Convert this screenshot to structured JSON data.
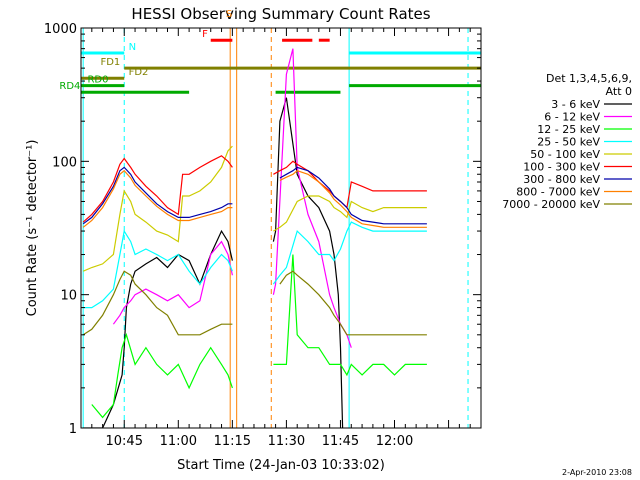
{
  "chart_data": {
    "type": "line",
    "title": "HESSI Observing Summary Count Rates",
    "xlabel": "Start Time (24-Jan-03 10:33:02)",
    "ylabel": "Count Rate (s⁻¹ detector⁻¹)",
    "yscale": "log",
    "ylim": [
      1,
      1000
    ],
    "xlim_minutes": [
      10.55,
      12.4
    ],
    "xtick_labels": [
      "10:45",
      "11:00",
      "11:15",
      "11:30",
      "11:45",
      "12:00"
    ],
    "xtick_values": [
      10.75,
      11.0,
      11.25,
      11.5,
      11.75,
      12.0
    ],
    "ytick_labels": [
      "1",
      "10",
      "100",
      "1000"
    ],
    "ytick_values": [
      1,
      10,
      100,
      1000
    ],
    "legend": {
      "placement": "right",
      "title_lines": [
        "Det 1,3,4,5,6,9,",
        "Att 0"
      ]
    },
    "timestamp": "2-Apr-2010 23:08",
    "series": [
      {
        "name": "3 - 6 keV",
        "color": "#000000",
        "x": [
          10.56,
          10.6,
          10.65,
          10.7,
          10.74,
          10.75,
          10.76,
          10.78,
          10.8,
          10.85,
          10.9,
          10.95,
          11.0,
          11.05,
          11.1,
          11.15,
          11.2,
          11.23,
          11.25,
          11.26,
          11.27,
          11.4,
          11.42,
          11.44,
          11.45,
          11.47,
          11.5,
          11.55,
          11.6,
          11.65,
          11.7,
          11.72,
          11.74,
          11.75,
          11.76
        ],
        "y": [
          1,
          1,
          1,
          1.5,
          2.5,
          4,
          8,
          12,
          15,
          17,
          19,
          16,
          20,
          18,
          12,
          20,
          30,
          25,
          18,
          null,
          null,
          null,
          null,
          25,
          30,
          200,
          300,
          80,
          55,
          45,
          30,
          20,
          10,
          4,
          1
        ]
      },
      {
        "name": "6 - 12 keV",
        "color": "#ff00ff",
        "x": [
          10.7,
          10.73,
          10.75,
          10.78,
          10.8,
          10.85,
          10.9,
          10.95,
          11.0,
          11.05,
          11.1,
          11.15,
          11.2,
          11.23,
          11.25,
          11.26,
          11.27,
          11.4,
          11.42,
          11.44,
          11.45,
          11.5,
          11.53,
          11.55,
          11.6,
          11.65,
          11.7,
          11.72,
          11.75,
          11.78,
          11.8
        ],
        "y": [
          6,
          7,
          8,
          9,
          10,
          11,
          10,
          9,
          10,
          8,
          9,
          20,
          25,
          20,
          14,
          null,
          null,
          null,
          null,
          10,
          12,
          450,
          700,
          90,
          40,
          25,
          10,
          8,
          6,
          5,
          4
        ]
      },
      {
        "name": "12 - 25 keV",
        "color": "#00ff00",
        "x": [
          10.6,
          10.65,
          10.7,
          10.72,
          10.74,
          10.76,
          10.8,
          10.85,
          10.9,
          10.95,
          11.0,
          11.05,
          11.1,
          11.15,
          11.2,
          11.23,
          11.25,
          11.26,
          11.27,
          11.4,
          11.42,
          11.44,
          11.5,
          11.53,
          11.55,
          11.6,
          11.65,
          11.7,
          11.75,
          11.78,
          11.8,
          11.85,
          11.9,
          11.95,
          12.0,
          12.05,
          12.1,
          12.15
        ],
        "y": [
          1.5,
          1.2,
          1.5,
          2.5,
          4,
          5,
          3,
          4,
          3,
          2.5,
          3,
          2,
          3,
          4,
          3,
          2.5,
          2,
          null,
          null,
          null,
          null,
          3,
          3,
          20,
          5,
          4,
          4,
          3,
          3,
          2.5,
          3,
          2.5,
          3,
          3,
          2.5,
          3,
          3,
          3
        ]
      },
      {
        "name": "25 - 50 keV",
        "color": "#00ffff",
        "x": [
          10.56,
          10.6,
          10.65,
          10.7,
          10.73,
          10.75,
          10.78,
          10.8,
          10.85,
          10.9,
          10.95,
          11.0,
          11.05,
          11.1,
          11.15,
          11.2,
          11.23,
          11.25,
          11.26,
          11.27,
          11.4,
          11.42,
          11.44,
          11.47,
          11.5,
          11.55,
          11.6,
          11.65,
          11.7,
          11.72,
          11.75,
          11.78,
          11.8,
          11.85,
          11.9,
          11.95,
          12.0,
          12.05,
          12.1,
          12.15
        ],
        "y": [
          8,
          8,
          9,
          11,
          20,
          30,
          25,
          20,
          22,
          20,
          18,
          20,
          15,
          12,
          16,
          20,
          18,
          15,
          null,
          null,
          null,
          null,
          12,
          14,
          16,
          30,
          25,
          20,
          20,
          18,
          22,
          30,
          35,
          32,
          30,
          30,
          30,
          30,
          30,
          30
        ]
      },
      {
        "name": "50 - 100 keV",
        "color": "#cccc00",
        "x": [
          10.56,
          10.6,
          10.65,
          10.7,
          10.73,
          10.75,
          10.78,
          10.8,
          10.85,
          10.9,
          10.95,
          11.0,
          11.02,
          11.05,
          11.1,
          11.15,
          11.2,
          11.23,
          11.25,
          11.26,
          11.27,
          11.4,
          11.42,
          11.44,
          11.47,
          11.5,
          11.55,
          11.6,
          11.65,
          11.7,
          11.72,
          11.75,
          11.78,
          11.8,
          11.85,
          11.9,
          11.95,
          12.0,
          12.05,
          12.1,
          12.15
        ],
        "y": [
          15,
          16,
          17,
          20,
          40,
          60,
          50,
          40,
          35,
          30,
          28,
          25,
          55,
          55,
          60,
          70,
          90,
          120,
          130,
          null,
          null,
          null,
          null,
          30,
          32,
          35,
          50,
          55,
          55,
          50,
          45,
          42,
          38,
          50,
          45,
          42,
          45,
          45,
          45,
          45,
          45
        ]
      },
      {
        "name": "100 - 300 keV",
        "color": "#ff0000",
        "x": [
          10.56,
          10.6,
          10.65,
          10.7,
          10.73,
          10.75,
          10.78,
          10.8,
          10.85,
          10.9,
          10.95,
          11.0,
          11.02,
          11.05,
          11.1,
          11.15,
          11.2,
          11.23,
          11.25,
          11.26,
          11.27,
          11.4,
          11.42,
          11.44,
          11.47,
          11.5,
          11.53,
          11.55,
          11.6,
          11.65,
          11.7,
          11.72,
          11.75,
          11.78,
          11.8,
          11.85,
          11.9,
          11.95,
          12.0,
          12.05,
          12.1,
          12.15
        ],
        "y": [
          35,
          40,
          50,
          70,
          95,
          105,
          90,
          80,
          65,
          55,
          45,
          40,
          80,
          80,
          90,
          100,
          110,
          100,
          90,
          null,
          null,
          null,
          null,
          80,
          85,
          90,
          100,
          95,
          85,
          70,
          60,
          55,
          50,
          45,
          70,
          65,
          60,
          60,
          60,
          60,
          60,
          60
        ]
      },
      {
        "name": "300 - 800 keV",
        "color": "#0000aa",
        "x": [
          10.56,
          10.6,
          10.65,
          10.7,
          10.73,
          10.75,
          10.78,
          10.8,
          10.85,
          10.9,
          10.95,
          11.0,
          11.05,
          11.1,
          11.15,
          11.2,
          11.23,
          11.25,
          11.26,
          11.27,
          11.4,
          11.42,
          11.44,
          11.47,
          11.5,
          11.53,
          11.55,
          11.6,
          11.65,
          11.7,
          11.72,
          11.75,
          11.78,
          11.8,
          11.85,
          11.9,
          11.95,
          12.0,
          12.05,
          12.1,
          12.15
        ],
        "y": [
          34,
          38,
          48,
          65,
          85,
          90,
          80,
          70,
          58,
          48,
          42,
          38,
          38,
          40,
          42,
          45,
          48,
          48,
          null,
          null,
          null,
          null,
          null,
          75,
          80,
          85,
          90,
          85,
          75,
          62,
          55,
          50,
          45,
          40,
          36,
          35,
          34,
          34,
          34,
          34,
          34
        ]
      },
      {
        "name": "800 - 7000 keV",
        "color": "#ff8000",
        "x": [
          10.56,
          10.6,
          10.65,
          10.7,
          10.73,
          10.75,
          10.78,
          10.8,
          10.85,
          10.9,
          10.95,
          11.0,
          11.05,
          11.1,
          11.15,
          11.2,
          11.23,
          11.25,
          11.26,
          11.27,
          11.4,
          11.42,
          11.44,
          11.47,
          11.5,
          11.53,
          11.55,
          11.6,
          11.65,
          11.7,
          11.72,
          11.75,
          11.78,
          11.8,
          11.85,
          11.9,
          11.95,
          12.0,
          12.05,
          12.1,
          12.15
        ],
        "y": [
          32,
          36,
          45,
          62,
          80,
          85,
          75,
          66,
          55,
          46,
          40,
          36,
          36,
          38,
          40,
          42,
          45,
          45,
          null,
          null,
          null,
          null,
          null,
          72,
          76,
          80,
          85,
          80,
          70,
          58,
          52,
          47,
          42,
          38,
          34,
          33,
          32,
          32,
          32,
          32,
          32
        ]
      },
      {
        "name": "7000 - 20000 keV",
        "color": "#808000",
        "x": [
          10.56,
          10.6,
          10.65,
          10.7,
          10.73,
          10.75,
          10.78,
          10.8,
          10.85,
          10.9,
          10.95,
          11.0,
          11.05,
          11.1,
          11.15,
          11.2,
          11.23,
          11.25,
          11.26,
          11.27,
          11.4,
          11.42,
          11.44,
          11.47,
          11.5,
          11.53,
          11.55,
          11.6,
          11.65,
          11.7,
          11.72,
          11.75,
          11.78,
          11.8,
          11.85,
          11.9,
          11.95,
          12.0,
          12.05,
          12.1,
          12.15
        ],
        "y": [
          5,
          5.5,
          7,
          10,
          13,
          15,
          14,
          12,
          10,
          8,
          7,
          5,
          5,
          5,
          5.5,
          6,
          6,
          6,
          null,
          null,
          null,
          null,
          null,
          12,
          14,
          15,
          14,
          12,
          10,
          8,
          7,
          6,
          5,
          5,
          5,
          5,
          5,
          5,
          5,
          5,
          5
        ]
      }
    ],
    "flags": [
      {
        "label": "N",
        "color": "#00ffff",
        "segments": [
          [
            10.55,
            10.75
          ],
          [
            11.79,
            12.4
          ]
        ],
        "level": 650,
        "label_at": 10.77
      },
      {
        "label": "FD1",
        "color": "#808000",
        "segments": [
          [
            10.75,
            12.4
          ]
        ],
        "level": 500,
        "label_at": 10.64
      },
      {
        "label": "FD2",
        "color": "#808000",
        "segments": [
          [
            10.55,
            10.75
          ]
        ],
        "level": 420,
        "label_at": 10.77
      },
      {
        "label": "RD0",
        "color": "#00aa00",
        "segments": [
          [
            10.55,
            10.75
          ],
          [
            11.79,
            12.4
          ]
        ],
        "level": 370,
        "label_at": 10.58
      },
      {
        "label": "RD4",
        "color": "#00aa00",
        "segments": [
          [
            10.55,
            11.05
          ],
          [
            11.45,
            11.75
          ]
        ],
        "level": 330,
        "label_at": 10.45
      },
      {
        "label": "F",
        "color": "#ff0000",
        "segments": [
          [
            11.15,
            11.25
          ],
          [
            11.48,
            11.62
          ],
          [
            11.65,
            11.7
          ]
        ],
        "level": 810,
        "label_at": 11.11
      },
      {
        "label": "S",
        "color": "#ff8000",
        "segments": [
          [
            11.27,
            11.38
          ]
        ],
        "level": 1150,
        "label_at": 11.22
      }
    ],
    "vlines": [
      {
        "x": 10.75,
        "color": "#00ffff",
        "style": "dashed"
      },
      {
        "x": 11.24,
        "color": "#ff8000",
        "style": "solid"
      },
      {
        "x": 11.27,
        "color": "#ff8000",
        "style": "solid"
      },
      {
        "x": 11.43,
        "color": "#ff8000",
        "style": "dashed"
      },
      {
        "x": 11.79,
        "color": "#00ffff",
        "style": "solid"
      },
      {
        "x": 12.34,
        "color": "#00ffff",
        "style": "dashed"
      },
      {
        "x": 10.56,
        "color": "#00ffff",
        "style": "solid"
      }
    ]
  }
}
